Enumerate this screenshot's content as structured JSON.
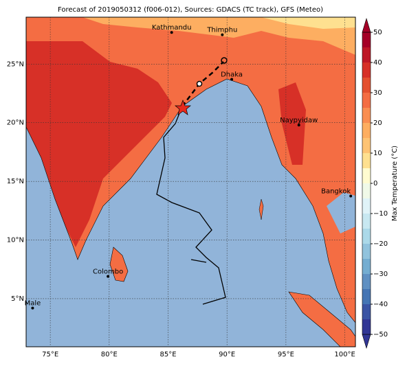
{
  "map": {
    "title": "Forecast of 2019050312 (f006-012), Sources: GDACS (TC track), GFS (Meteo)",
    "xlim": [
      72.95,
      100.9
    ],
    "ylim": [
      0.9,
      29
    ],
    "xticks": [
      {
        "value": 75,
        "label": "75°E"
      },
      {
        "value": 80,
        "label": "80°E"
      },
      {
        "value": 85,
        "label": "85°E"
      },
      {
        "value": 90,
        "label": "90°E"
      },
      {
        "value": 95,
        "label": "95°E"
      },
      {
        "value": 100,
        "label": "100°E"
      }
    ],
    "yticks": [
      {
        "value": 5,
        "label": "5°N"
      },
      {
        "value": 10,
        "label": "10°N"
      },
      {
        "value": 15,
        "label": "15°N"
      },
      {
        "value": 20,
        "label": "20°N"
      },
      {
        "value": 25,
        "label": "25°N"
      }
    ],
    "grid": true,
    "cities": [
      {
        "name": "Kathmandu",
        "lon": 85.3,
        "lat": 27.7
      },
      {
        "name": "Thimphu",
        "lon": 89.6,
        "lat": 27.5
      },
      {
        "name": "Dhaka",
        "lon": 90.4,
        "lat": 23.7
      },
      {
        "name": "Naypyidaw",
        "lon": 96.1,
        "lat": 19.8
      },
      {
        "name": "Bangkok",
        "lon": 100.5,
        "lat": 13.75
      },
      {
        "name": "Colombo",
        "lon": 79.9,
        "lat": 6.9
      },
      {
        "name": "Male",
        "lon": 73.5,
        "lat": 4.2
      }
    ],
    "colorbar": {
      "label": "Max Temperature (°C)",
      "lim": [
        -50,
        50
      ],
      "ticks": [
        {
          "value": -50,
          "label": "−50"
        },
        {
          "value": -40,
          "label": "−40"
        },
        {
          "value": -30,
          "label": "−30"
        },
        {
          "value": -20,
          "label": "−20"
        },
        {
          "value": -10,
          "label": "−10"
        },
        0,
        10,
        20,
        30,
        40,
        50
      ],
      "colors": [
        "#313695",
        "#3a54a4",
        "#4575b4",
        "#5f90c2",
        "#74add1",
        "#91c3dd",
        "#abd9e9",
        "#c8e8f1",
        "#e0f3f8",
        "#f0f9e8",
        "#fffbd0",
        "#fee090",
        "#fdc374",
        "#fdae61",
        "#f98e52",
        "#f46d43",
        "#e4502f",
        "#d73027",
        "#be1826",
        "#a50026"
      ]
    }
  }
}
